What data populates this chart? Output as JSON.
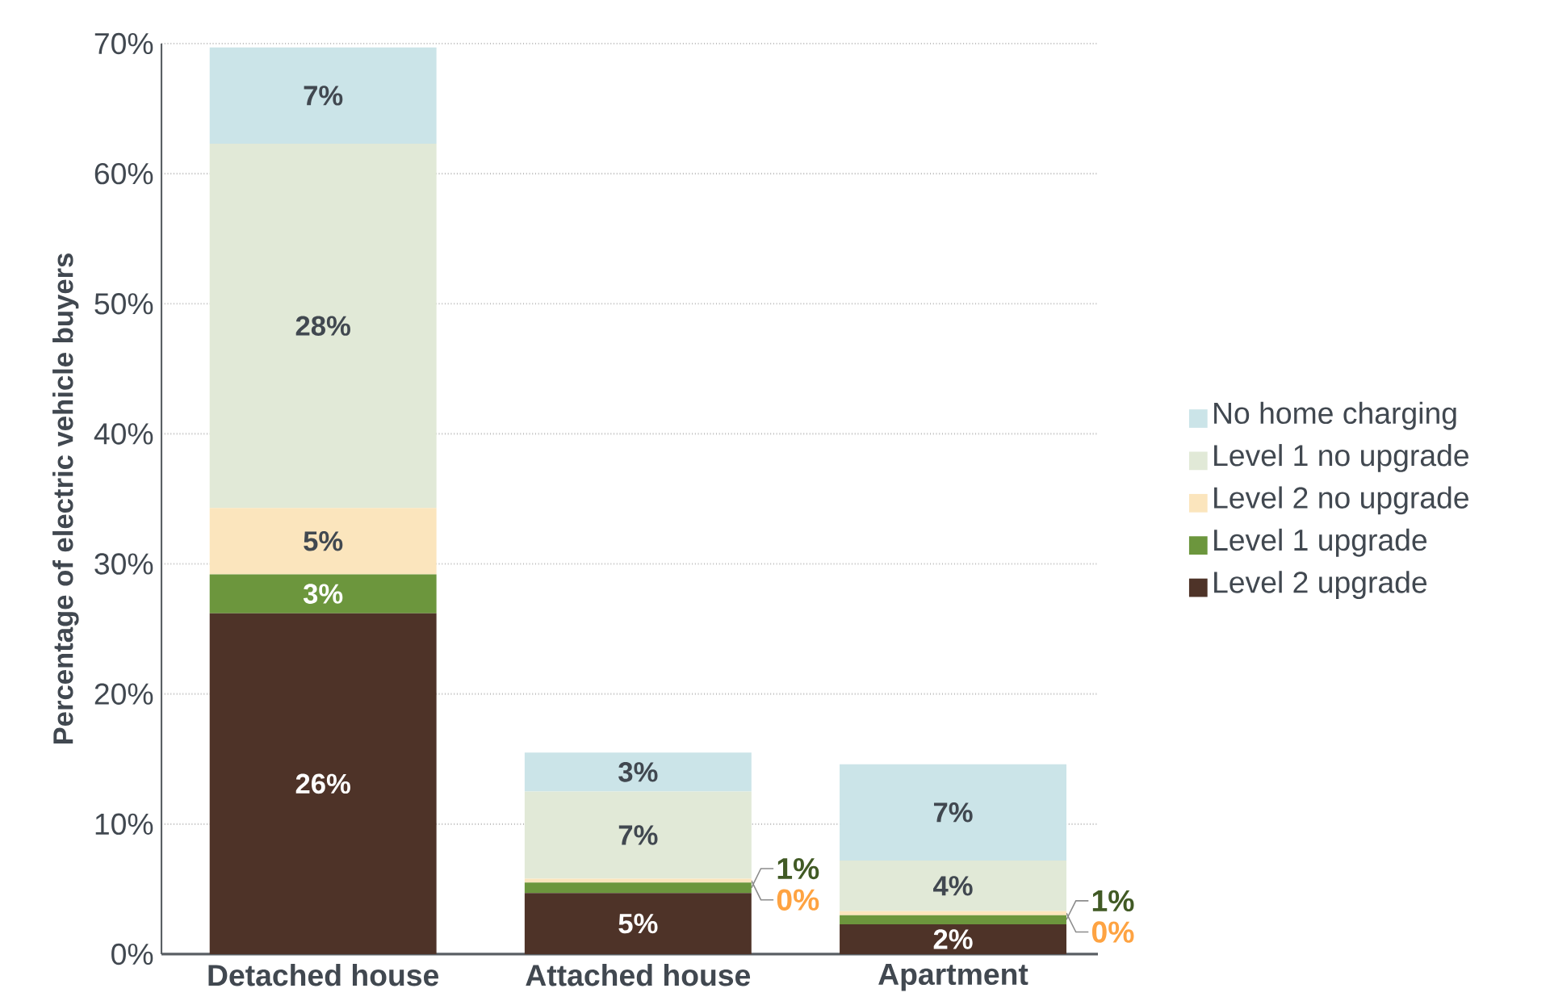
{
  "chart_data": {
    "type": "bar",
    "stacked": true,
    "ylabel": "Percentage of electric vehicle buyers",
    "categories": [
      "Detached house",
      "Attached house",
      "Apartment"
    ],
    "ylim": [
      0,
      70
    ],
    "yticks": [
      {
        "value": 0,
        "label": "0%"
      },
      {
        "value": 10,
        "label": "10%"
      },
      {
        "value": 20,
        "label": "20%"
      },
      {
        "value": 30,
        "label": "30%"
      },
      {
        "value": 40,
        "label": "40%"
      },
      {
        "value": 50,
        "label": "50%"
      },
      {
        "value": 60,
        "label": "60%"
      },
      {
        "value": 70,
        "label": "70%"
      }
    ],
    "grid": "y",
    "legend": "right",
    "series": [
      {
        "name": "Level 2 upgrade",
        "color": "#4e3328",
        "values": [
          26.2,
          4.7,
          2.3
        ],
        "value_labels": [
          "26%",
          "5%",
          "2%"
        ]
      },
      {
        "name": "Level 1 upgrade",
        "color": "#6c963d",
        "values": [
          3.0,
          0.8,
          0.7
        ],
        "value_labels": [
          "3%",
          "1%",
          "1%"
        ]
      },
      {
        "name": "Level 2 no upgrade",
        "color": "#fbe5bd",
        "values": [
          5.1,
          0.3,
          0.3
        ],
        "value_labels": [
          "5%",
          "0%",
          "0%"
        ]
      },
      {
        "name": "Level 1 no upgrade",
        "color": "#e1e9d7",
        "values": [
          28.0,
          6.7,
          3.9
        ],
        "value_labels": [
          "28%",
          "7%",
          "4%"
        ]
      },
      {
        "name": "No home charging",
        "color": "#cbe4e8",
        "values": [
          7.4,
          3.0,
          7.4
        ],
        "value_labels": [
          "7%",
          "3%",
          "7%"
        ]
      }
    ]
  }
}
